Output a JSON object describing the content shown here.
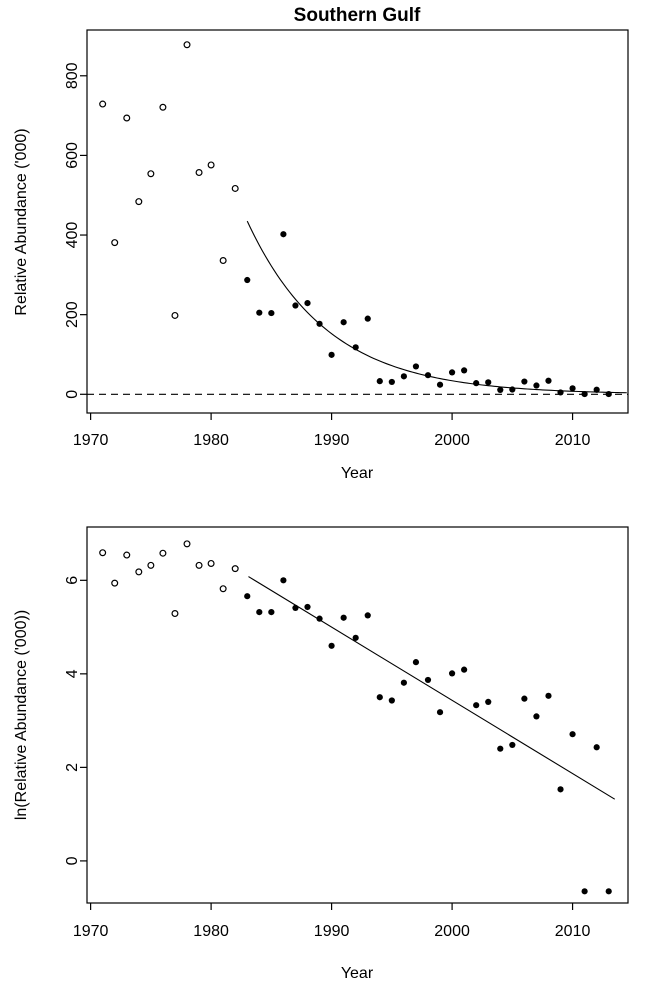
{
  "colors": {
    "foreground": "#000000",
    "background": "#ffffff"
  },
  "chart_data": [
    {
      "type": "scatter",
      "title": "Southern Gulf",
      "xlabel": "Year",
      "ylabel": "Relative Abundance ('000)",
      "xlim": [
        1969.7,
        2014.6
      ],
      "ylim": [
        -47,
        915
      ],
      "xticks": [
        1970,
        1980,
        1990,
        2000,
        2010
      ],
      "yticks": [
        0,
        200,
        400,
        600,
        800
      ],
      "grid": false,
      "legend": "none",
      "series": [
        {
          "name": "open-circles-1971-1982",
          "marker": "open-circle",
          "x": [
            1971,
            1972,
            1973,
            1974,
            1975,
            1976,
            1977,
            1978,
            1979,
            1980,
            1981,
            1982
          ],
          "y": [
            729,
            381,
            694,
            484,
            554,
            721,
            198,
            878,
            557,
            576,
            336,
            517
          ]
        },
        {
          "name": "filled-circles-1983-2013",
          "marker": "filled-circle",
          "x": [
            1983,
            1984,
            1985,
            1986,
            1987,
            1988,
            1989,
            1990,
            1991,
            1992,
            1993,
            1994,
            1995,
            1996,
            1997,
            1998,
            1999,
            2000,
            2001,
            2002,
            2003,
            2004,
            2005,
            2006,
            2007,
            2008,
            2009,
            2010,
            2011,
            2012,
            2013
          ],
          "y": [
            287,
            205,
            204,
            402,
            223,
            229,
            177,
            99,
            181,
            118,
            190,
            33,
            31,
            45,
            70,
            48,
            24,
            55,
            60,
            28,
            30,
            11,
            12,
            32,
            22,
            34,
            4.6,
            15,
            0.52,
            11.4,
            0.52
          ]
        }
      ],
      "fit": {
        "kind": "exponential-decay",
        "x_start": 1983,
        "x_end": 2014.5,
        "value_at_x_start": 435,
        "decay_rate_per_year": 0.15
      },
      "reference_line": {
        "y": 0,
        "style": "dashed"
      }
    },
    {
      "type": "scatter",
      "title": "",
      "xlabel": "Year",
      "ylabel": "ln(Relative Abundance ('000))",
      "xlim": [
        1969.7,
        2014.6
      ],
      "ylim": [
        -0.9,
        7.14
      ],
      "xticks": [
        1970,
        1980,
        1990,
        2000,
        2010
      ],
      "yticks": [
        0,
        2,
        4,
        6
      ],
      "grid": false,
      "legend": "none",
      "series": [
        {
          "name": "open-circles-1971-1982",
          "marker": "open-circle",
          "x": [
            1971,
            1972,
            1973,
            1974,
            1975,
            1976,
            1977,
            1978,
            1979,
            1980,
            1981,
            1982
          ],
          "y": [
            6.59,
            5.94,
            6.54,
            6.18,
            6.32,
            6.58,
            5.29,
            6.78,
            6.32,
            6.36,
            5.82,
            6.25
          ]
        },
        {
          "name": "filled-circles-1983-2013",
          "marker": "filled-circle",
          "x": [
            1983,
            1984,
            1985,
            1986,
            1987,
            1988,
            1989,
            1990,
            1991,
            1992,
            1993,
            1994,
            1995,
            1996,
            1997,
            1998,
            1999,
            2000,
            2001,
            2002,
            2003,
            2004,
            2005,
            2006,
            2007,
            2008,
            2009,
            2010,
            2011,
            2012,
            2013
          ],
          "y": [
            5.66,
            5.32,
            5.32,
            6.0,
            5.41,
            5.43,
            5.18,
            4.6,
            5.2,
            4.77,
            5.25,
            3.5,
            3.43,
            3.81,
            4.25,
            3.87,
            3.18,
            4.01,
            4.09,
            3.33,
            3.4,
            2.4,
            2.48,
            3.47,
            3.09,
            3.53,
            1.53,
            2.71,
            -0.65,
            2.43,
            -0.65
          ]
        }
      ],
      "fit": {
        "kind": "linear",
        "x1": 1983.1,
        "y1": 6.08,
        "x2": 2013.5,
        "y2": 1.32
      }
    }
  ]
}
